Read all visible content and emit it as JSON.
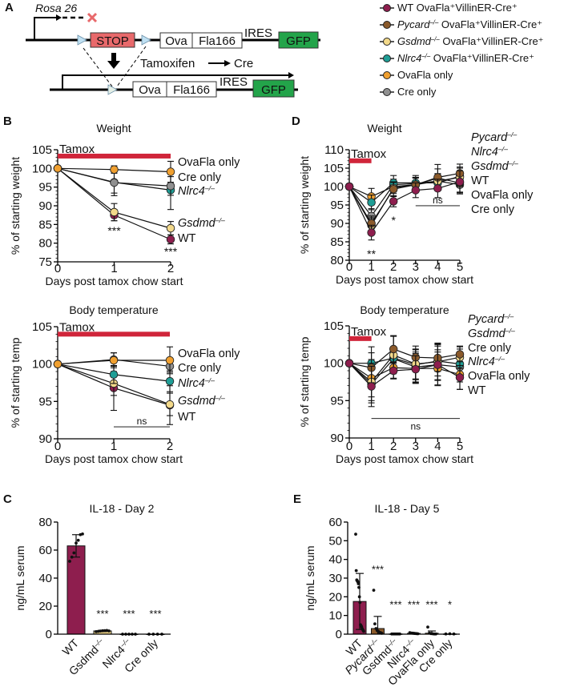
{
  "panel_letters": [
    "A",
    "B",
    "C",
    "D",
    "E"
  ],
  "diagram": {
    "locus": "Rosa 26",
    "stop": "STOP",
    "ova": "Ova",
    "fla": "Fla166",
    "ires": "IRES",
    "gfp": "GFP",
    "tamoxifen": "Tamoxifen",
    "cre": "Cre",
    "colors": {
      "stop": "#e8696b",
      "gfp": "#23a44a",
      "loxp": "#bfe0f2",
      "cross": "#e8696b"
    }
  },
  "legend": [
    {
      "gene": "WT",
      "italic": false,
      "sup": "",
      "rest": " OvaFla⁺VillinER-Cre⁺",
      "color": "#8e1e4e"
    },
    {
      "gene": "Pycard",
      "italic": true,
      "sup": "–/–",
      "rest": " OvaFla⁺VillinER-Cre⁺",
      "color": "#8b5a2b"
    },
    {
      "gene": "Gsdmd",
      "italic": true,
      "sup": "–/–",
      "rest": " OvaFla⁺VillinER-Cre⁺",
      "color": "#f3d98a"
    },
    {
      "gene": "Nlrc4",
      "italic": true,
      "sup": "–/–",
      "rest": " OvaFla⁺VillinER-Cre⁺",
      "color": "#1f9e96"
    },
    {
      "gene": "OvaFla only",
      "italic": false,
      "sup": "",
      "rest": "",
      "color": "#f0a030"
    },
    {
      "gene": "Cre only",
      "italic": false,
      "sup": "",
      "rest": "",
      "color": "#909090"
    }
  ],
  "tamox_color": "#d0253a",
  "chart_data": [
    {
      "type": "line",
      "panel": "B",
      "title": "Weight",
      "xlabel": "Days post tamox chow start",
      "ylabel": "% of starting weight",
      "x": [
        0,
        1,
        2
      ],
      "ylim": [
        75,
        105
      ],
      "yticks": [
        75,
        80,
        85,
        90,
        95,
        100,
        105
      ],
      "tamox": {
        "label": "Tamox",
        "from": 0,
        "to": 2,
        "y": 103.3
      },
      "series": [
        {
          "key": "WT",
          "color": "#8e1e4e",
          "values": [
            100,
            87.5,
            81
          ],
          "sd": [
            0,
            1.5,
            1.2
          ]
        },
        {
          "key": "Gsdmd",
          "color": "#f3d98a",
          "values": [
            100,
            88.3,
            84
          ],
          "sd": [
            0,
            2.3,
            1.8
          ]
        },
        {
          "key": "Nlrc4",
          "color": "#1f9e96",
          "values": [
            100,
            96.3,
            94.2
          ],
          "sd": [
            0,
            3.6,
            5.2
          ]
        },
        {
          "key": "Cre only",
          "color": "#909090",
          "values": [
            100,
            96.2,
            95.3
          ],
          "sd": [
            0,
            2.8,
            2.5
          ]
        },
        {
          "key": "OvaFla only",
          "color": "#f0a030",
          "values": [
            100,
            99.7,
            99.1
          ],
          "sd": [
            0,
            1,
            2.8
          ]
        }
      ],
      "labels": [
        {
          "gene": "OvaFla only",
          "italic": false,
          "sup": ""
        },
        {
          "gene": "Cre only",
          "italic": false,
          "sup": ""
        },
        {
          "gene": "Nlrc4",
          "italic": true,
          "sup": "–/–"
        },
        {
          "gene": "Gsdmd",
          "italic": true,
          "sup": "–/–"
        },
        {
          "gene": "WT",
          "italic": false,
          "sup": ""
        }
      ],
      "annotations": [
        {
          "text": "***",
          "x": 1,
          "y": 83.4
        },
        {
          "text": "***",
          "x": 2,
          "y": 77.8
        }
      ],
      "ns": []
    },
    {
      "type": "line",
      "panel": "B",
      "title": "Body temperature",
      "xlabel": "Days post tamox chow start",
      "ylabel": "% of starting temp",
      "x": [
        0,
        1,
        2
      ],
      "ylim": [
        90,
        105
      ],
      "yticks": [
        90,
        95,
        100,
        105
      ],
      "tamox": {
        "label": "Tamox",
        "from": 0,
        "to": 2,
        "y": 104
      },
      "series": [
        {
          "key": "WT",
          "color": "#8e1e4e",
          "values": [
            100,
            96.8,
            94.5
          ],
          "sd": [
            0,
            3,
            2.6
          ]
        },
        {
          "key": "Gsdmd",
          "color": "#f3d98a",
          "values": [
            100,
            97.4,
            94.6
          ],
          "sd": [
            0,
            1.6,
            1.5
          ]
        },
        {
          "key": "Nlrc4",
          "color": "#1f9e96",
          "values": [
            100,
            98.6,
            97.7
          ],
          "sd": [
            0,
            1.2,
            1.4
          ]
        },
        {
          "key": "Cre only",
          "color": "#909090",
          "values": [
            100,
            100.6,
            99.7
          ],
          "sd": [
            0,
            0.9,
            0.8
          ]
        },
        {
          "key": "OvaFla only",
          "color": "#f0a030",
          "values": [
            100,
            100.5,
            100.5
          ],
          "sd": [
            0,
            1,
            1.8
          ]
        }
      ],
      "labels": [
        {
          "gene": "OvaFla only",
          "italic": false,
          "sup": ""
        },
        {
          "gene": "Cre only",
          "italic": false,
          "sup": ""
        },
        {
          "gene": "Nlrc4",
          "italic": true,
          "sup": "–/–"
        },
        {
          "gene": "Gsdmd",
          "italic": true,
          "sup": "–/–"
        },
        {
          "gene": "WT",
          "italic": false,
          "sup": ""
        }
      ],
      "annotations": [],
      "ns": [
        {
          "text": "ns",
          "from": 1,
          "to": 2,
          "y": 91.6
        }
      ]
    },
    {
      "type": "line",
      "panel": "D",
      "title": "Weight",
      "xlabel": "Days post tamox chow start",
      "ylabel": "% of starting weight",
      "x": [
        0,
        1,
        2,
        3,
        4,
        5
      ],
      "ylim": [
        80,
        110
      ],
      "yticks": [
        80,
        85,
        90,
        95,
        100,
        105,
        110
      ],
      "tamox": {
        "label": "Tamox",
        "from": 0,
        "to": 1,
        "y": 107
      },
      "series": [
        {
          "key": "Cre only",
          "color": "#909090",
          "values": [
            100,
            92,
            100.5,
            100.8,
            101.5,
            100.5
          ],
          "sd": [
            0,
            2,
            1.5,
            1.5,
            2,
            2
          ]
        },
        {
          "key": "OvaFla only",
          "color": "#f0a030",
          "values": [
            100,
            97.3,
            100,
            100.5,
            102.3,
            101
          ],
          "sd": [
            0,
            2.2,
            1.5,
            2,
            2.5,
            3
          ]
        },
        {
          "key": "Nlrc4",
          "color": "#1f9e96",
          "values": [
            100,
            95.7,
            101,
            101,
            101,
            102.8
          ],
          "sd": [
            0,
            2,
            2,
            2,
            2,
            2.5
          ]
        },
        {
          "key": "Gsdmd",
          "color": "#f3d98a",
          "values": [
            100,
            89.5,
            99.6,
            100.5,
            101.5,
            102.5
          ],
          "sd": [
            0,
            2,
            1.5,
            2,
            2,
            2.5
          ]
        },
        {
          "key": "Pycard",
          "color": "#8b5a2b",
          "values": [
            100,
            90,
            99.3,
            100.5,
            102.5,
            103.6
          ],
          "sd": [
            0,
            2,
            2,
            2,
            3.5,
            2.5
          ]
        },
        {
          "key": "WT",
          "color": "#8e1e4e",
          "values": [
            100,
            87.5,
            96,
            99,
            99.5,
            101.3
          ],
          "sd": [
            0,
            2,
            1.5,
            2,
            2.5,
            3
          ]
        }
      ],
      "labels": [
        {
          "gene": "Pycard",
          "italic": true,
          "sup": "–/–"
        },
        {
          "gene": "Nlrc4",
          "italic": true,
          "sup": "–/–"
        },
        {
          "gene": "Gsdmd",
          "italic": true,
          "sup": "–/–"
        },
        {
          "gene": "WT",
          "italic": false,
          "sup": ""
        },
        {
          "gene": "OvaFla only",
          "italic": false,
          "sup": ""
        },
        {
          "gene": "Cre only",
          "italic": false,
          "sup": ""
        }
      ],
      "annotations": [
        {
          "text": "**",
          "x": 1,
          "y": 81.7
        },
        {
          "text": "*",
          "x": 2,
          "y": 90.9
        }
      ],
      "ns": [
        {
          "text": "ns",
          "from": 3,
          "to": 5,
          "y": 94.8
        }
      ]
    },
    {
      "type": "line",
      "panel": "D",
      "title": "Body temperature",
      "xlabel": "Days post tamox chow start",
      "ylabel": "% of starting temp",
      "x": [
        0,
        1,
        2,
        3,
        4,
        5
      ],
      "ylim": [
        90,
        105
      ],
      "yticks": [
        90,
        95,
        100,
        105
      ],
      "tamox": {
        "label": "Tamox",
        "from": 0,
        "to": 1,
        "y": 103.3
      },
      "series": [
        {
          "key": "Cre only",
          "color": "#909090",
          "values": [
            100,
            97.2,
            100.6,
            99.5,
            99.8,
            99.5
          ],
          "sd": [
            0,
            2.5,
            1.5,
            2,
            2,
            2
          ]
        },
        {
          "key": "OvaFla only",
          "color": "#f0a030",
          "values": [
            100,
            98,
            99.4,
            99.3,
            99.3,
            98.5
          ],
          "sd": [
            0,
            2.5,
            1.5,
            2,
            2.2,
            2
          ]
        },
        {
          "key": "Nlrc4",
          "color": "#1f9e96",
          "values": [
            100,
            100,
            100.7,
            99.8,
            100.3,
            99.9
          ],
          "sd": [
            0,
            2.2,
            1.5,
            2,
            2,
            2
          ]
        },
        {
          "key": "Gsdmd",
          "color": "#f3d98a",
          "values": [
            100,
            97.5,
            101.1,
            99.9,
            100.2,
            100.8
          ],
          "sd": [
            0,
            2.5,
            2.5,
            2,
            2.5,
            1.5
          ]
        },
        {
          "key": "Pycard",
          "color": "#8b5a2b",
          "values": [
            100,
            99.4,
            101.9,
            100.8,
            100.7,
            101.2
          ],
          "sd": [
            0,
            2,
            1.8,
            1.5,
            1.8,
            1
          ]
        },
        {
          "key": "WT",
          "color": "#8e1e4e",
          "values": [
            100,
            96.9,
            99,
            99.2,
            99.8,
            98.1
          ],
          "sd": [
            0,
            2.7,
            1,
            1.8,
            2.8,
            1.6
          ]
        }
      ],
      "labels": [
        {
          "gene": "Pycard",
          "italic": true,
          "sup": "–/–"
        },
        {
          "gene": "Gsdmd",
          "italic": true,
          "sup": "–/–"
        },
        {
          "gene": "Cre only",
          "italic": false,
          "sup": ""
        },
        {
          "gene": "Nlrc4",
          "italic": true,
          "sup": "–/–"
        },
        {
          "gene": "OvaFla only",
          "italic": false,
          "sup": ""
        },
        {
          "gene": "WT",
          "italic": false,
          "sup": ""
        }
      ],
      "annotations": [],
      "ns": [
        {
          "text": "ns",
          "from": 1,
          "to": 5,
          "y": 92.6
        }
      ]
    },
    {
      "type": "bar",
      "panel": "C",
      "title": "IL-18 - Day 2",
      "ylabel": "ng/mL serum",
      "ylim": [
        0,
        80
      ],
      "yticks": [
        0,
        20,
        40,
        60,
        80
      ],
      "categories": [
        {
          "gene": "WT",
          "italic": false,
          "sup": ""
        },
        {
          "gene": "Gsdmd",
          "italic": false,
          "sup": "–/–"
        },
        {
          "gene": "Nlrc4",
          "italic": false,
          "sup": "–/–"
        },
        {
          "gene": "Cre only",
          "italic": false,
          "sup": ""
        }
      ],
      "values": [
        63,
        2.3,
        0,
        0
      ],
      "sd": [
        8,
        0.5,
        0,
        0
      ],
      "colors": [
        "#8e1e4e",
        "#f3d98a",
        "#1f9e96",
        "#909090"
      ],
      "points": [
        [
          52,
          55,
          58,
          65,
          67,
          71,
          71.5
        ],
        [
          1.8,
          2,
          2.2,
          2.4,
          2.5,
          2.6,
          2.3
        ],
        [
          0,
          0,
          0,
          0,
          0
        ],
        [
          0,
          0,
          0,
          0
        ]
      ],
      "stars": [
        {
          "text": "",
          "y": 0
        },
        {
          "text": "***",
          "y": 15
        },
        {
          "text": "***",
          "y": 15
        },
        {
          "text": "***",
          "y": 15
        }
      ]
    },
    {
      "type": "bar",
      "panel": "E",
      "title": "IL-18 - Day 5",
      "ylabel": "ng/mL serum",
      "ylim": [
        0,
        60
      ],
      "yticks": [
        0,
        10,
        20,
        30,
        40,
        50,
        60
      ],
      "categories": [
        {
          "gene": "WT",
          "italic": false,
          "sup": ""
        },
        {
          "gene": "Pycard",
          "italic": true,
          "sup": "–/–"
        },
        {
          "gene": "Gsdmd",
          "italic": false,
          "sup": "–/–"
        },
        {
          "gene": "Nlrc4",
          "italic": false,
          "sup": "–/–"
        },
        {
          "gene": "OvaFla only",
          "italic": false,
          "sup": ""
        },
        {
          "gene": "Cre only",
          "italic": false,
          "sup": ""
        }
      ],
      "values": [
        17.5,
        3,
        0.1,
        0.4,
        0.5,
        0.1
      ],
      "sd": [
        15,
        6.5,
        0,
        0.3,
        1.2,
        0
      ],
      "colors": [
        "#8e1e4e",
        "#8b5a2b",
        "#f3d98a",
        "#1f9e96",
        "#f0a030",
        "#909090"
      ],
      "points": [
        [
          53.5,
          34,
          29,
          28.5,
          28,
          27,
          25,
          20,
          17,
          5,
          4.5,
          4,
          3,
          2.5,
          2,
          1.5
        ],
        [
          23.5,
          5.5,
          3,
          2,
          1.5,
          1,
          0.8,
          0.5
        ],
        [
          0.1,
          0.1,
          0.1,
          0.1,
          0.1,
          0.1
        ],
        [
          0.8,
          0.6,
          0.5,
          0.4,
          0.3,
          0.2
        ],
        [
          3.8,
          0.6,
          0.3,
          0.2,
          0.1,
          0.1
        ],
        [
          0.1,
          0.2,
          0.1
        ]
      ],
      "stars": [
        {
          "text": "",
          "y": 0
        },
        {
          "text": "***",
          "y": 35
        },
        {
          "text": "***",
          "y": 16
        },
        {
          "text": "***",
          "y": 16
        },
        {
          "text": "***",
          "y": 16
        },
        {
          "text": "*",
          "y": 16
        }
      ]
    }
  ]
}
